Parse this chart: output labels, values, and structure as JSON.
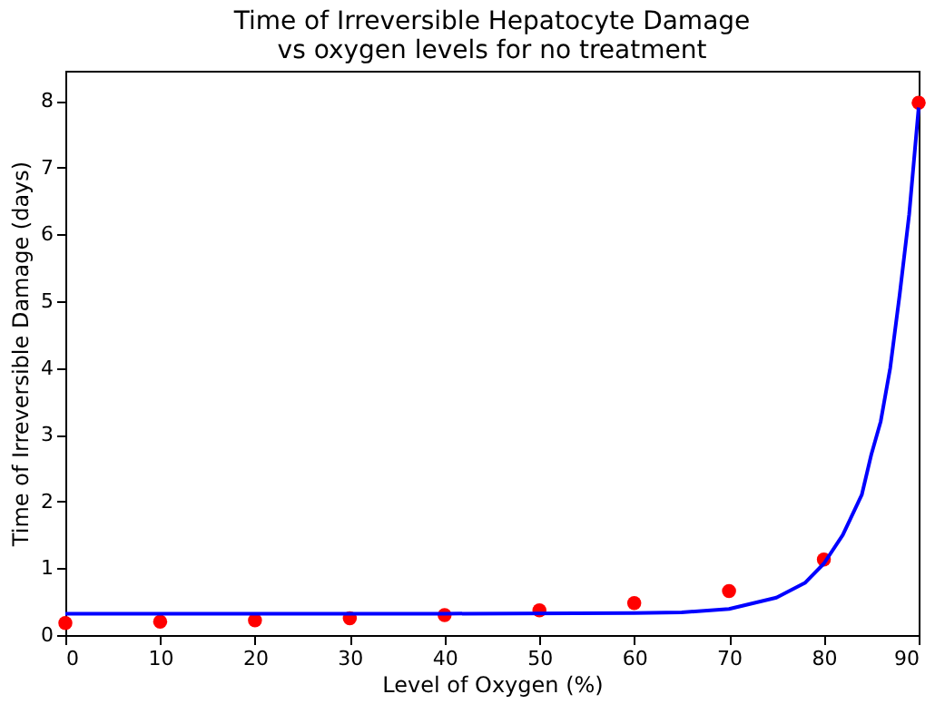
{
  "chart_data": {
    "type": "scatter",
    "title": "Time of Irreversible Hepatocyte Damage\nvs oxygen levels for no treatment",
    "xlabel": "Level of Oxygen (%)",
    "ylabel": "Time of Irreversible Damage (days)",
    "xlim": [
      0,
      90
    ],
    "ylim": [
      0,
      8.45
    ],
    "xticks": [
      0,
      10,
      20,
      30,
      40,
      50,
      60,
      70,
      80,
      90
    ],
    "yticks": [
      0,
      1,
      2,
      3,
      4,
      5,
      6,
      7,
      8
    ],
    "grid": false,
    "legend": false,
    "series": [
      {
        "color": "#ff0000",
        "marker": "circle",
        "x": [
          0,
          10,
          20,
          30,
          40,
          50,
          60,
          70,
          80,
          90
        ],
        "values": [
          0.18,
          0.2,
          0.22,
          0.25,
          0.3,
          0.37,
          0.48,
          0.66,
          1.13,
          7.97
        ]
      },
      {
        "type": "line",
        "color": "#0000ff",
        "marker": "none",
        "line_style": "solid",
        "x": [
          0,
          20,
          40,
          60,
          65,
          70,
          75,
          78,
          80,
          82,
          84,
          85,
          86,
          87,
          88,
          89,
          90
        ],
        "values": [
          0.32,
          0.32,
          0.32,
          0.33,
          0.34,
          0.39,
          0.56,
          0.78,
          1.07,
          1.5,
          2.1,
          2.7,
          3.2,
          4.0,
          5.1,
          6.3,
          7.9
        ]
      }
    ]
  }
}
